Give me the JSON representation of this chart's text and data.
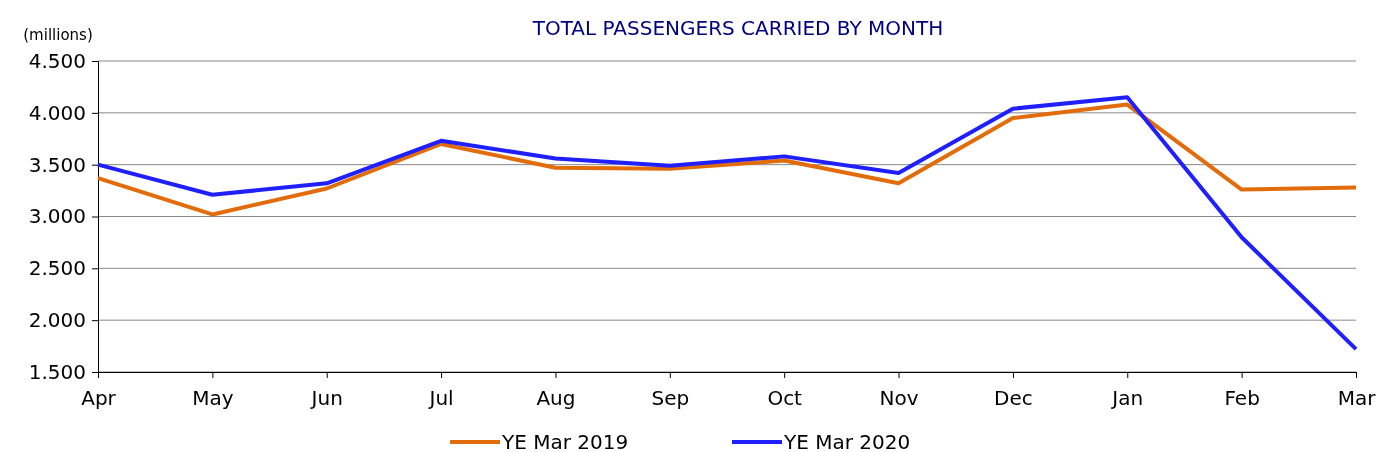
{
  "chart_data": {
    "type": "line",
    "title": "TOTAL PASSENGERS CARRIED BY MONTH",
    "ylabel": "(millions)",
    "categories": [
      "Apr",
      "May",
      "Jun",
      "Jul",
      "Aug",
      "Sep",
      "Oct",
      "Nov",
      "Dec",
      "Jan",
      "Feb",
      "Mar"
    ],
    "series": [
      {
        "name": "YE Mar 2019",
        "color": "#e36c0a",
        "values": [
          3.37,
          3.02,
          3.27,
          3.7,
          3.47,
          3.46,
          3.54,
          3.32,
          3.95,
          4.08,
          3.26,
          3.28
        ]
      },
      {
        "name": "YE Mar 2020",
        "color": "#1f1fff",
        "values": [
          3.5,
          3.21,
          3.32,
          3.73,
          3.56,
          3.49,
          3.58,
          3.42,
          4.04,
          4.15,
          2.8,
          1.72
        ]
      }
    ],
    "ylim": [
      1.5,
      4.5
    ],
    "yticks": [
      {
        "value": 1.5,
        "label": "1.500"
      },
      {
        "value": 2,
        "label": "2.000"
      },
      {
        "value": 2.5,
        "label": "2.500"
      },
      {
        "value": 3,
        "label": "3.000"
      },
      {
        "value": 3.5,
        "label": "3.500"
      },
      {
        "value": 4,
        "label": "4.000"
      },
      {
        "value": 4.5,
        "label": "4.500"
      }
    ],
    "grid": "y",
    "legend": "bottom",
    "marker": "none",
    "line_style": "solid"
  }
}
